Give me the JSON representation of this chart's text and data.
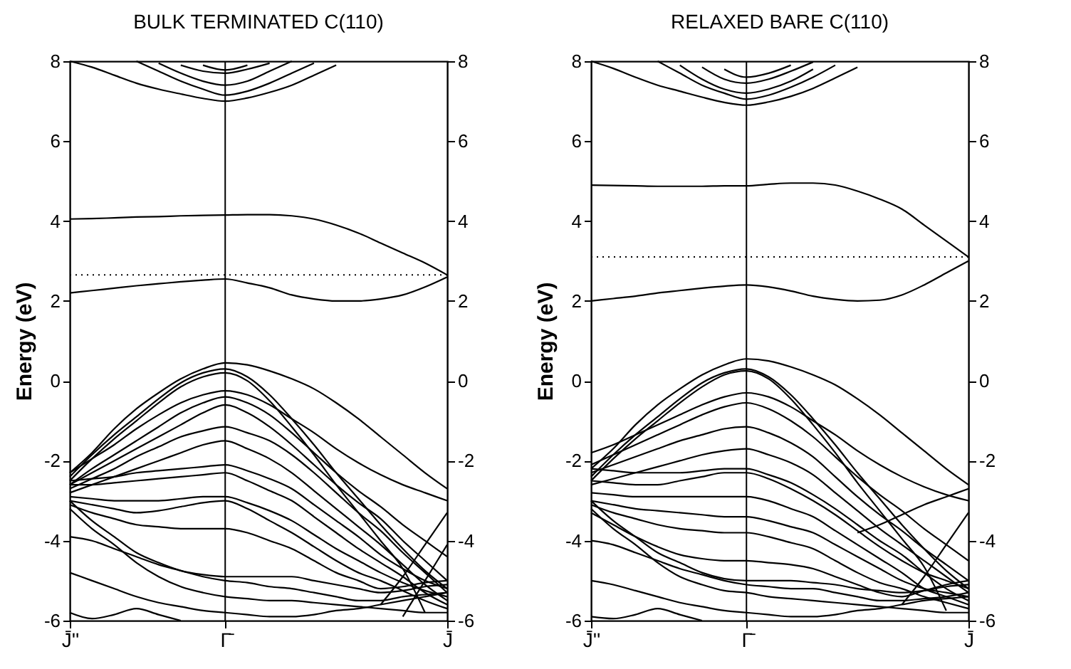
{
  "chart_data": [
    {
      "type": "line",
      "title": "BULK TERMINATED C(110)",
      "ylabel": "Energy (eV)",
      "categories": [
        "J̄''",
        null,
        null,
        null,
        null,
        null,
        null,
        "Γ̄",
        null,
        null,
        null,
        null,
        null,
        null,
        null,
        null,
        null,
        "J̄"
      ],
      "ylim": [
        -6,
        8
      ],
      "yticks": [
        -6,
        -4,
        -2,
        0,
        2,
        4,
        6,
        8
      ],
      "y2lim": [
        -6,
        8
      ],
      "y2ticks": [
        -6,
        -4,
        -2,
        0,
        2,
        4,
        6,
        8
      ],
      "grid": false,
      "legend": false,
      "marker": "none",
      "line_style": "solid",
      "ref_lines": [
        {
          "axis": "x",
          "value": "Γ̄",
          "color": "#000000",
          "line_style": "solid"
        },
        {
          "axis": "y",
          "value": 2.65,
          "color": "#000000",
          "line_style": "dotted"
        }
      ],
      "series": [
        {
          "color": "#000000",
          "values": [
            4.05,
            4.06,
            4.08,
            4.1,
            4.11,
            4.13,
            4.14,
            4.15,
            4.16,
            4.16,
            4.13,
            4.05,
            3.9,
            3.7,
            3.45,
            3.2,
            2.95,
            2.65
          ]
        },
        {
          "color": "#000000",
          "values": [
            2.2,
            2.26,
            2.32,
            2.38,
            2.43,
            2.48,
            2.52,
            2.55,
            2.45,
            2.33,
            2.15,
            2.05,
            2.0,
            2.0,
            2.05,
            2.15,
            2.35,
            2.6
          ]
        },
        {
          "color": "#000000",
          "values": [
            8,
            7.85,
            7.65,
            7.45,
            7.3,
            7.18,
            7.07,
            7.0,
            7.08,
            7.22,
            7.4,
            7.65,
            7.9,
            null,
            null,
            null,
            null,
            null
          ]
        },
        {
          "color": "#000000",
          "values": [
            null,
            null,
            null,
            8,
            7.75,
            7.5,
            7.3,
            7.15,
            7.25,
            7.45,
            7.7,
            7.95,
            null,
            null,
            null,
            null,
            null,
            null
          ]
        },
        {
          "color": "#000000",
          "values": [
            null,
            null,
            null,
            null,
            7.95,
            7.7,
            7.5,
            7.4,
            7.5,
            7.75,
            8,
            null,
            null,
            null,
            null,
            null,
            null,
            null
          ]
        },
        {
          "color": "#000000",
          "values": [
            null,
            null,
            null,
            null,
            null,
            7.9,
            7.75,
            7.7,
            7.8,
            7.95,
            null,
            null,
            null,
            null,
            null,
            null,
            null,
            null
          ]
        },
        {
          "color": "#000000",
          "values": [
            null,
            null,
            null,
            null,
            null,
            null,
            7.9,
            7.78,
            7.9,
            null,
            null,
            null,
            null,
            null,
            null,
            null,
            null,
            null
          ]
        },
        {
          "color": "#000000",
          "values": [
            -2.3,
            -1.8,
            -1.2,
            -0.7,
            -0.3,
            0.05,
            0.3,
            0.45,
            0.4,
            0.25,
            0.05,
            -0.2,
            -0.55,
            -0.95,
            -1.4,
            -1.85,
            -2.3,
            -2.7
          ]
        },
        {
          "color": "#000000",
          "values": [
            -2.4,
            -1.85,
            -1.35,
            -0.9,
            -0.45,
            -0.05,
            0.2,
            0.3,
            0.1,
            -0.35,
            -0.95,
            -1.6,
            -2.3,
            -2.95,
            -3.6,
            -4.2,
            -4.75,
            -5.2
          ]
        },
        {
          "color": "#000000",
          "values": [
            -2.5,
            -1.95,
            -1.45,
            -1.0,
            -0.55,
            -0.15,
            0.1,
            0.2,
            0.0,
            -0.5,
            -1.15,
            -1.85,
            -2.6,
            -3.3,
            -4.0,
            -4.7,
            -5.8,
            null
          ]
        },
        {
          "color": "#000000",
          "values": [
            -2.3,
            -1.95,
            -1.6,
            -1.2,
            -0.85,
            -0.55,
            -0.35,
            -0.25,
            -0.35,
            -0.6,
            -0.95,
            -1.3,
            -1.7,
            -2.05,
            -2.35,
            -2.6,
            -2.8,
            -3.0
          ]
        },
        {
          "color": "#000000",
          "values": [
            -2.6,
            -2.2,
            -1.85,
            -1.5,
            -1.15,
            -0.8,
            -0.55,
            -0.4,
            -0.55,
            -0.85,
            -1.3,
            -1.8,
            -2.3,
            -2.75,
            -3.15,
            -3.6,
            -4.0,
            -4.4
          ]
        },
        {
          "color": "#000000",
          "values": [
            -2.6,
            -2.3,
            -2.0,
            -1.7,
            -1.4,
            -1.1,
            -0.8,
            -0.6,
            -0.8,
            -1.15,
            -1.6,
            -2.1,
            -2.6,
            -3.05,
            -3.45,
            -4.0,
            -4.5,
            -5.0
          ]
        },
        {
          "color": "#000000",
          "values": [
            -2.7,
            -2.45,
            -2.2,
            -1.9,
            -1.65,
            -1.4,
            -1.25,
            -1.15,
            -1.3,
            -1.5,
            -1.85,
            -2.3,
            -2.8,
            -3.3,
            -3.75,
            -4.3,
            -4.8,
            -5.3
          ]
        },
        {
          "color": "#000000",
          "values": [
            -2.8,
            -2.6,
            -2.4,
            -2.2,
            -2.0,
            -1.8,
            -1.6,
            -1.5,
            -1.7,
            -1.95,
            -2.3,
            -2.75,
            -3.2,
            -3.65,
            -4.1,
            -4.6,
            -5.1,
            -5.5
          ]
        },
        {
          "color": "#000000",
          "values": [
            -2.5,
            -2.45,
            -2.4,
            -2.3,
            -2.25,
            -2.2,
            -2.15,
            -2.1,
            -2.25,
            -2.45,
            -2.7,
            -3.1,
            -3.5,
            -3.9,
            -4.35,
            -4.7,
            -5.0,
            -5.2
          ]
        },
        {
          "color": "#000000",
          "values": [
            -2.6,
            -2.6,
            -2.55,
            -2.5,
            -2.45,
            -2.4,
            -2.35,
            -2.3,
            -2.5,
            -2.75,
            -3.0,
            -3.4,
            -3.8,
            -4.2,
            -4.55,
            -4.9,
            -5.3,
            -5.6
          ]
        },
        {
          "color": "#000000",
          "values": [
            -2.9,
            -2.95,
            -3.0,
            -3.0,
            -3.0,
            -2.95,
            -2.9,
            -2.9,
            -3.05,
            -3.25,
            -3.5,
            -3.85,
            -4.2,
            -4.5,
            -4.8,
            -5.05,
            -5.25,
            -5.4
          ]
        },
        {
          "color": "#000000",
          "values": [
            -3.0,
            -3.1,
            -3.2,
            -3.3,
            -3.25,
            -3.15,
            -3.05,
            -3.0,
            -3.2,
            -3.5,
            -3.8,
            -4.15,
            -4.5,
            -4.8,
            -5.0,
            -5.25,
            -5.5,
            -5.7
          ]
        },
        {
          "color": "#000000",
          "values": [
            -3.1,
            -3.3,
            -3.45,
            -3.6,
            -3.65,
            -3.7,
            -3.7,
            -3.7,
            -3.8,
            -4.0,
            -4.2,
            -4.5,
            -4.8,
            -5.0,
            -5.2,
            -5.15,
            -5.05,
            -5.0
          ]
        },
        {
          "color": "#000000",
          "values": [
            -3.2,
            -3.7,
            -4.1,
            -4.55,
            -4.9,
            -5.15,
            -5.3,
            -5.4,
            -5.45,
            -5.5,
            -5.5,
            -5.55,
            -5.6,
            -5.65,
            -5.7,
            -5.75,
            -5.8,
            -5.8
          ]
        },
        {
          "color": "#000000",
          "values": [
            -3.0,
            -3.5,
            -3.9,
            -4.3,
            -4.55,
            -4.75,
            -4.85,
            -4.9,
            -4.9,
            -4.9,
            -4.9,
            -5.0,
            -5.1,
            -5.2,
            -5.3,
            -5.25,
            -5.15,
            -5.1
          ]
        },
        {
          "color": "#000000",
          "values": [
            -3.9,
            -4.0,
            -4.2,
            -4.4,
            -4.6,
            -4.75,
            -4.9,
            -5.0,
            -5.05,
            -5.15,
            -5.2,
            -5.3,
            -5.4,
            -5.5,
            -5.5,
            -5.4,
            -5.35,
            -5.3
          ]
        },
        {
          "color": "#000000",
          "values": [
            -4.8,
            -5.0,
            -5.2,
            -5.4,
            -5.55,
            -5.65,
            -5.75,
            -5.8,
            -5.85,
            -5.9,
            -5.9,
            -5.85,
            -5.75,
            -5.7,
            -5.6,
            -5.5,
            -5.4,
            -5.3
          ]
        },
        {
          "color": "#000000",
          "values": [
            -5.8,
            -5.95,
            -5.85,
            -5.7,
            -5.85,
            -6,
            null,
            null,
            null,
            null,
            null,
            null,
            null,
            null,
            null,
            null,
            null,
            null
          ]
        },
        {
          "color": "#000000",
          "values": [
            null,
            null,
            null,
            null,
            null,
            null,
            null,
            null,
            null,
            null,
            null,
            null,
            null,
            null,
            -5.6,
            -4.9,
            -4.1,
            -3.3
          ]
        },
        {
          "color": "#000000",
          "values": [
            null,
            null,
            null,
            null,
            null,
            null,
            null,
            null,
            null,
            null,
            null,
            null,
            null,
            null,
            null,
            -5.9,
            -5.0,
            -4.1
          ]
        }
      ]
    },
    {
      "type": "line",
      "title": "RELAXED BARE C(110)",
      "ylabel": "Energy (eV)",
      "categories": [
        "J̄''",
        null,
        null,
        null,
        null,
        null,
        null,
        "Γ̄",
        null,
        null,
        null,
        null,
        null,
        null,
        null,
        null,
        null,
        "J̄"
      ],
      "ylim": [
        -6,
        8
      ],
      "yticks": [
        -6,
        -4,
        -2,
        0,
        2,
        4,
        6,
        8
      ],
      "y2lim": [
        -6,
        8
      ],
      "y2ticks": [
        -6,
        -4,
        -2,
        0,
        2,
        4,
        6,
        8
      ],
      "grid": false,
      "legend": false,
      "marker": "none",
      "line_style": "solid",
      "ref_lines": [
        {
          "axis": "x",
          "value": "Γ̄",
          "color": "#000000",
          "line_style": "solid"
        },
        {
          "axis": "y",
          "value": 3.1,
          "color": "#000000",
          "line_style": "dotted"
        }
      ],
      "series": [
        {
          "color": "#000000",
          "values": [
            4.9,
            4.89,
            4.88,
            4.87,
            4.87,
            4.87,
            4.88,
            4.88,
            4.92,
            4.95,
            4.95,
            4.9,
            4.75,
            4.55,
            4.3,
            3.9,
            3.5,
            3.1
          ]
        },
        {
          "color": "#000000",
          "values": [
            2.0,
            2.06,
            2.12,
            2.2,
            2.26,
            2.32,
            2.37,
            2.4,
            2.35,
            2.25,
            2.12,
            2.04,
            2.0,
            2.02,
            2.15,
            2.4,
            2.7,
            3.0
          ]
        },
        {
          "color": "#000000",
          "values": [
            8,
            7.82,
            7.6,
            7.4,
            7.25,
            7.1,
            6.97,
            6.9,
            6.98,
            7.12,
            7.32,
            7.58,
            7.85,
            null,
            null,
            null,
            null,
            null
          ]
        },
        {
          "color": "#000000",
          "values": [
            null,
            null,
            null,
            8,
            7.7,
            7.4,
            7.2,
            7.05,
            7.15,
            7.35,
            7.6,
            7.9,
            null,
            null,
            null,
            null,
            null,
            null
          ]
        },
        {
          "color": "#000000",
          "values": [
            null,
            null,
            null,
            null,
            7.9,
            7.55,
            7.3,
            7.2,
            7.3,
            7.5,
            7.8,
            null,
            null,
            null,
            null,
            null,
            null,
            null
          ]
        },
        {
          "color": "#000000",
          "values": [
            null,
            null,
            null,
            null,
            null,
            7.85,
            7.55,
            7.45,
            7.55,
            7.75,
            7.98,
            null,
            null,
            null,
            null,
            null,
            null,
            null
          ]
        },
        {
          "color": "#000000",
          "values": [
            null,
            null,
            null,
            null,
            null,
            null,
            7.8,
            7.6,
            7.7,
            7.9,
            null,
            null,
            null,
            null,
            null,
            null,
            null,
            null
          ]
        },
        {
          "color": "#000000",
          "values": [
            -2.2,
            -1.7,
            -1.1,
            -0.6,
            -0.2,
            0.15,
            0.4,
            0.55,
            0.5,
            0.35,
            0.15,
            -0.1,
            -0.45,
            -0.85,
            -1.3,
            -1.75,
            -2.2,
            -2.6
          ]
        },
        {
          "color": "#000000",
          "values": [
            -2.4,
            -1.85,
            -1.35,
            -0.9,
            -0.45,
            -0.05,
            0.2,
            0.3,
            0.1,
            -0.35,
            -0.95,
            -1.6,
            -2.3,
            -2.95,
            -3.6,
            -4.2,
            -4.75,
            -5.2
          ]
        },
        {
          "color": "#000000",
          "values": [
            -2.5,
            -1.95,
            -1.45,
            -1.0,
            -0.55,
            -0.15,
            0.15,
            0.25,
            0.05,
            -0.45,
            -1.1,
            -1.8,
            -2.55,
            -3.25,
            -3.95,
            -4.65,
            -5.75,
            null
          ]
        },
        {
          "color": "#000000",
          "values": [
            -1.8,
            -1.6,
            -1.35,
            -1.1,
            -0.85,
            -0.6,
            -0.4,
            -0.3,
            -0.4,
            -0.65,
            -1.0,
            -1.35,
            -1.75,
            -2.1,
            -2.4,
            -2.65,
            -2.85,
            -3.0
          ]
        },
        {
          "color": "#000000",
          "values": [
            -2.1,
            -1.85,
            -1.6,
            -1.35,
            -1.1,
            -0.85,
            -0.65,
            -0.55,
            -0.7,
            -1.0,
            -1.4,
            -1.9,
            -2.4,
            -2.85,
            -3.25,
            -3.7,
            -4.1,
            -4.5
          ]
        },
        {
          "color": "#000000",
          "values": [
            -2.3,
            -2.1,
            -1.9,
            -1.7,
            -1.5,
            -1.35,
            -1.2,
            -1.15,
            -1.3,
            -1.55,
            -1.9,
            -2.4,
            -2.9,
            -3.35,
            -3.75,
            -4.2,
            -4.6,
            -5.0
          ]
        },
        {
          "color": "#000000",
          "values": [
            -2.6,
            -2.45,
            -2.3,
            -2.15,
            -2.0,
            -1.85,
            -1.75,
            -1.7,
            -1.85,
            -2.05,
            -2.35,
            -2.8,
            -3.25,
            -3.7,
            -4.1,
            -4.5,
            -4.9,
            -5.3
          ]
        },
        {
          "color": "#000000",
          "values": [
            -2.2,
            -2.25,
            -2.3,
            -2.3,
            -2.3,
            -2.25,
            -2.2,
            -2.2,
            -2.35,
            -2.55,
            -2.85,
            -3.2,
            -3.6,
            -4.0,
            -4.35,
            -4.8,
            -5.2,
            -5.5
          ]
        },
        {
          "color": "#000000",
          "values": [
            -2.5,
            -2.55,
            -2.6,
            -2.6,
            -2.5,
            -2.4,
            -2.3,
            -2.3,
            -2.45,
            -2.7,
            -3.0,
            -3.35,
            -3.75,
            -4.15,
            -4.5,
            -4.8,
            -5.0,
            -5.2
          ]
        },
        {
          "color": "#000000",
          "values": [
            -2.8,
            -2.85,
            -2.9,
            -2.9,
            -2.9,
            -2.9,
            -2.9,
            -2.9,
            -3.0,
            -3.2,
            -3.4,
            -3.75,
            -4.1,
            -4.45,
            -4.8,
            -5.2,
            -5.4,
            -5.6
          ]
        },
        {
          "color": "#000000",
          "values": [
            -3.0,
            -3.1,
            -3.2,
            -3.25,
            -3.3,
            -3.35,
            -3.4,
            -3.4,
            -3.5,
            -3.65,
            -3.8,
            -4.1,
            -4.4,
            -4.7,
            -5.0,
            -5.2,
            -5.3,
            -5.4
          ]
        },
        {
          "color": "#000000",
          "values": [
            -3.1,
            -3.3,
            -3.45,
            -3.6,
            -3.7,
            -3.75,
            -3.8,
            -3.8,
            -3.9,
            -4.05,
            -4.2,
            -4.5,
            -4.8,
            -5.05,
            -5.2,
            -5.4,
            -5.55,
            -5.7
          ]
        },
        {
          "color": "#000000",
          "values": [
            -3.3,
            -3.6,
            -3.9,
            -4.15,
            -4.35,
            -4.45,
            -4.5,
            -4.5,
            -4.55,
            -4.6,
            -4.7,
            -4.9,
            -5.1,
            -5.3,
            -5.4,
            -5.25,
            -5.1,
            -5.0
          ]
        },
        {
          "color": "#000000",
          "values": [
            -3.2,
            -3.7,
            -4.1,
            -4.55,
            -4.9,
            -5.1,
            -5.25,
            -5.3,
            -5.4,
            -5.45,
            -5.5,
            -5.55,
            -5.6,
            -5.65,
            -5.7,
            -5.75,
            -5.8,
            -5.8
          ]
        },
        {
          "color": "#000000",
          "values": [
            -3.0,
            -3.5,
            -3.9,
            -4.3,
            -4.55,
            -4.8,
            -4.95,
            -5.0,
            -5.0,
            -5.0,
            -5.05,
            -5.1,
            -5.2,
            -5.25,
            -5.3,
            -5.25,
            -5.15,
            -5.1
          ]
        },
        {
          "color": "#000000",
          "values": [
            -4.0,
            -4.1,
            -4.3,
            -4.5,
            -4.7,
            -4.85,
            -5.0,
            -5.1,
            -5.15,
            -5.2,
            -5.2,
            -5.3,
            -5.4,
            -5.5,
            -5.5,
            -5.45,
            -5.4,
            -5.3
          ]
        },
        {
          "color": "#000000",
          "values": [
            -5.0,
            -5.1,
            -5.25,
            -5.4,
            -5.55,
            -5.65,
            -5.75,
            -5.8,
            -5.85,
            -5.9,
            -5.9,
            -5.85,
            -5.75,
            -5.7,
            -5.6,
            -5.5,
            -5.45,
            -5.4
          ]
        },
        {
          "color": "#000000",
          "values": [
            -5.9,
            -5.95,
            -5.85,
            -5.7,
            -5.85,
            -6,
            null,
            null,
            null,
            null,
            null,
            null,
            null,
            null,
            null,
            null,
            null,
            null
          ]
        },
        {
          "color": "#000000",
          "values": [
            null,
            null,
            null,
            null,
            null,
            null,
            null,
            null,
            null,
            null,
            null,
            null,
            -3.8,
            -3.6,
            -3.35,
            -3.1,
            -2.9,
            -2.7
          ]
        },
        {
          "color": "#000000",
          "values": [
            null,
            null,
            null,
            null,
            null,
            null,
            null,
            null,
            null,
            null,
            null,
            null,
            null,
            null,
            -5.6,
            -4.9,
            -4.1,
            -3.3
          ]
        }
      ]
    }
  ]
}
